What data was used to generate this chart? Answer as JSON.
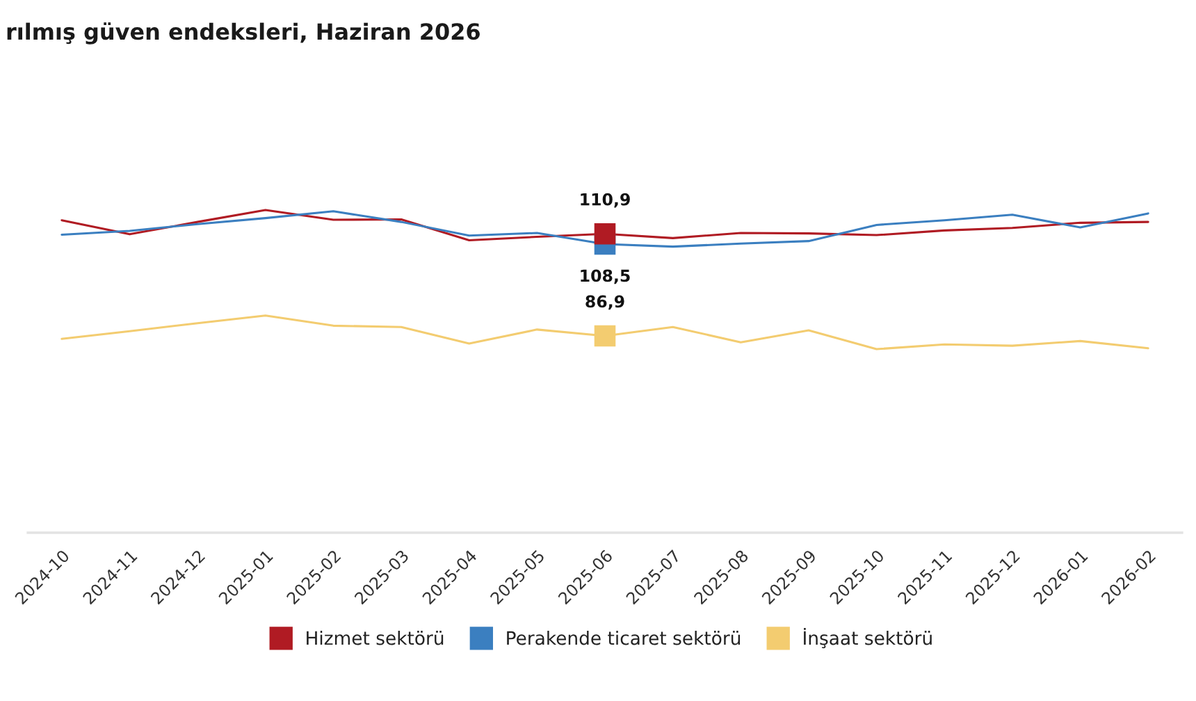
{
  "chart_data": {
    "type": "line",
    "title": "rılmış güven endeksleri, Haziran 2026",
    "categories": [
      "2024-10",
      "2024-11",
      "2024-12",
      "2025-01",
      "2025-02",
      "2025-03",
      "2025-04",
      "2025-05",
      "2025-06",
      "2025-07",
      "2025-08",
      "2025-09",
      "2025-10",
      "2025-11",
      "2025-12",
      "2026-01",
      "2026-02"
    ],
    "series": [
      {
        "name": "Hizmet sektörü",
        "color": "#b01b23",
        "values": [
          114.1,
          110.8,
          113.7,
          116.5,
          114.2,
          114.3,
          109.4,
          110.2,
          110.9,
          109.9,
          111.1,
          111.0,
          110.6,
          111.7,
          112.3,
          113.5,
          113.7
        ],
        "value_labels": [
          null,
          null,
          null,
          null,
          null,
          null,
          null,
          null,
          "110,9",
          null,
          null,
          null,
          null,
          null,
          null,
          null,
          null
        ]
      },
      {
        "name": "Perakende ticaret sektörü",
        "color": "#3b7fc0",
        "values": [
          110.7,
          111.6,
          113.2,
          114.6,
          116.2,
          113.7,
          110.5,
          111.1,
          108.5,
          107.9,
          108.6,
          109.2,
          113.0,
          114.1,
          115.4,
          112.4,
          115.7
        ],
        "value_labels": [
          null,
          null,
          null,
          null,
          null,
          null,
          null,
          null,
          "108,5",
          null,
          null,
          null,
          null,
          null,
          null,
          null,
          null
        ]
      },
      {
        "name": "İnşaat sektörü",
        "color": "#f3cc70",
        "values": [
          86.2,
          88.0,
          89.9,
          91.7,
          89.3,
          89.0,
          85.1,
          88.4,
          86.9,
          89.0,
          85.4,
          88.2,
          83.8,
          84.9,
          84.6,
          85.7,
          84.0
        ],
        "value_labels": [
          null,
          null,
          null,
          null,
          null,
          null,
          null,
          null,
          "86,9",
          null,
          null,
          null,
          null,
          null,
          null,
          null,
          null
        ]
      }
    ],
    "tick_labels": "x",
    "grid": false,
    "legend": "bottom",
    "line_style": "solid"
  }
}
